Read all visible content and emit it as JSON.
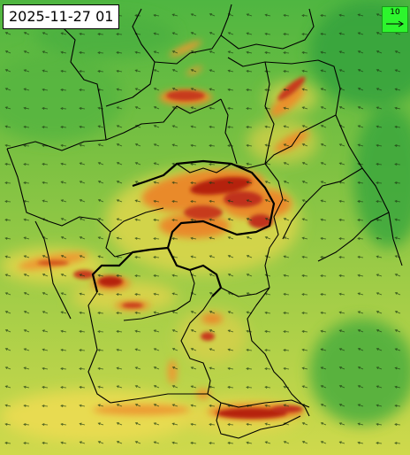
{
  "map": {
    "timestamp": "2025-11-27 01",
    "legend": {
      "reference_value": "10",
      "arrow_icon": "right-arrow-icon"
    },
    "colors": {
      "field_low": "#3fae3a",
      "field_mid": "#8cc63f",
      "field_warm": "#e6d84a",
      "field_orange": "#e98a2a",
      "field_high": "#b5200f",
      "legend_bg": "#2df52d",
      "borders": "#000000"
    }
  }
}
